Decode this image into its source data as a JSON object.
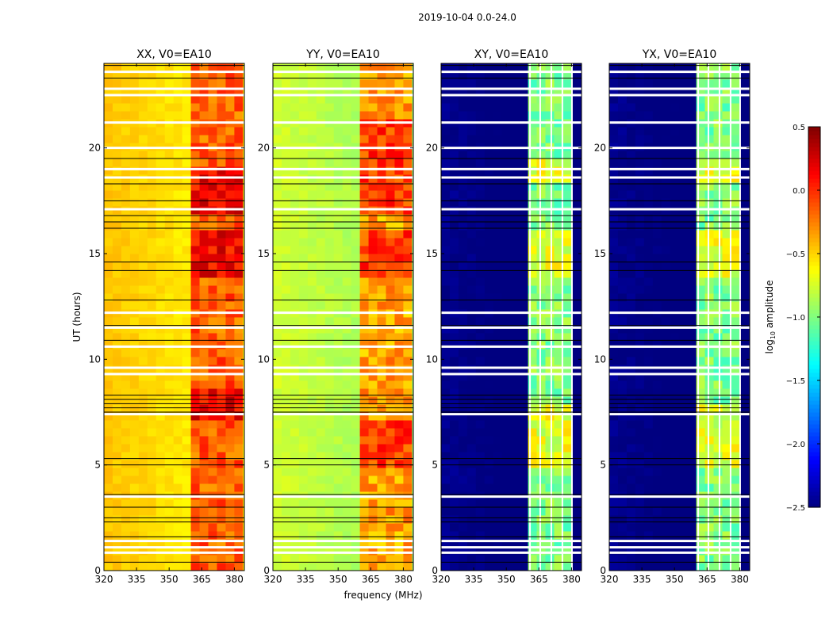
{
  "chart_data": {
    "type": "heatmap",
    "suptitle": "2019-10-04 0.0-24.0",
    "xlabel": "frequency (MHz)",
    "ylabel": "UT (hours)",
    "xlim": [
      320,
      384.6
    ],
    "ylim": [
      0,
      24
    ],
    "xticks": [
      "320",
      "335",
      "350",
      "365",
      "380"
    ],
    "yticks": [
      "0",
      "5",
      "10",
      "15",
      "20"
    ],
    "colorbar": {
      "label": "log10 amplitude",
      "label_main": "log",
      "label_sub": "10",
      "label_rest": " amplitude",
      "range": [
        -2.5,
        0.5
      ],
      "ticks": [
        "0.5",
        "0.0",
        "−0.5",
        "−1.0",
        "−1.5",
        "−2.0",
        "−2.5"
      ],
      "colormap": "jet"
    },
    "panels": [
      {
        "title": "XX, V0=EA10",
        "background": -0.45,
        "band": -0.15,
        "band_range": [
          362,
          382
        ],
        "band_edges": [],
        "peak_hours": [
          [
            14,
            16
          ],
          [
            7,
            8.5
          ],
          [
            17,
            19
          ]
        ]
      },
      {
        "title": "YY, V0=EA10",
        "background": -0.75,
        "band": -0.35,
        "band_range": [
          362,
          382
        ],
        "band_edges": [],
        "peak_hours": [
          [
            14,
            16
          ],
          [
            5,
            7
          ],
          [
            17,
            21.5
          ]
        ]
      },
      {
        "title": "XY, V0=EA10",
        "background": -2.45,
        "band": -1.0,
        "band_range": [
          361,
          380.5
        ],
        "band_edges": [
          360.9,
          365.6,
          370.7,
          375.8,
          380.2
        ],
        "peak_hours": [
          [
            14,
            16
          ],
          [
            5,
            8
          ],
          [
            18.5,
            19.5
          ]
        ]
      },
      {
        "title": "YX, V0=EA10",
        "background": -2.45,
        "band": -1.0,
        "band_range": [
          361,
          380.5
        ],
        "band_edges": [
          360.9,
          365.6,
          370.7,
          375.8,
          380.2
        ],
        "peak_hours": [
          [
            14,
            16
          ],
          [
            5,
            8
          ],
          [
            18.5,
            19.5
          ]
        ]
      }
    ],
    "flagged_white_hours": [
      23.6,
      22.8,
      22.5,
      21.2,
      20.0,
      19.0,
      18.6,
      17.1,
      12.2,
      11.5,
      10.6,
      9.6,
      9.3,
      7.4,
      3.5,
      1.4,
      1.1,
      0.85
    ],
    "flagged_black_hours": [
      23.9,
      23.3,
      19.5,
      18.3,
      17.5,
      16.8,
      16.5,
      16.2,
      14.6,
      14.2,
      12.8,
      11.6,
      10.9,
      8.3,
      8.1,
      7.9,
      7.7,
      7.5,
      5.3,
      5.0,
      3.6,
      3.0,
      2.5,
      2.3,
      1.6,
      0.4
    ]
  }
}
